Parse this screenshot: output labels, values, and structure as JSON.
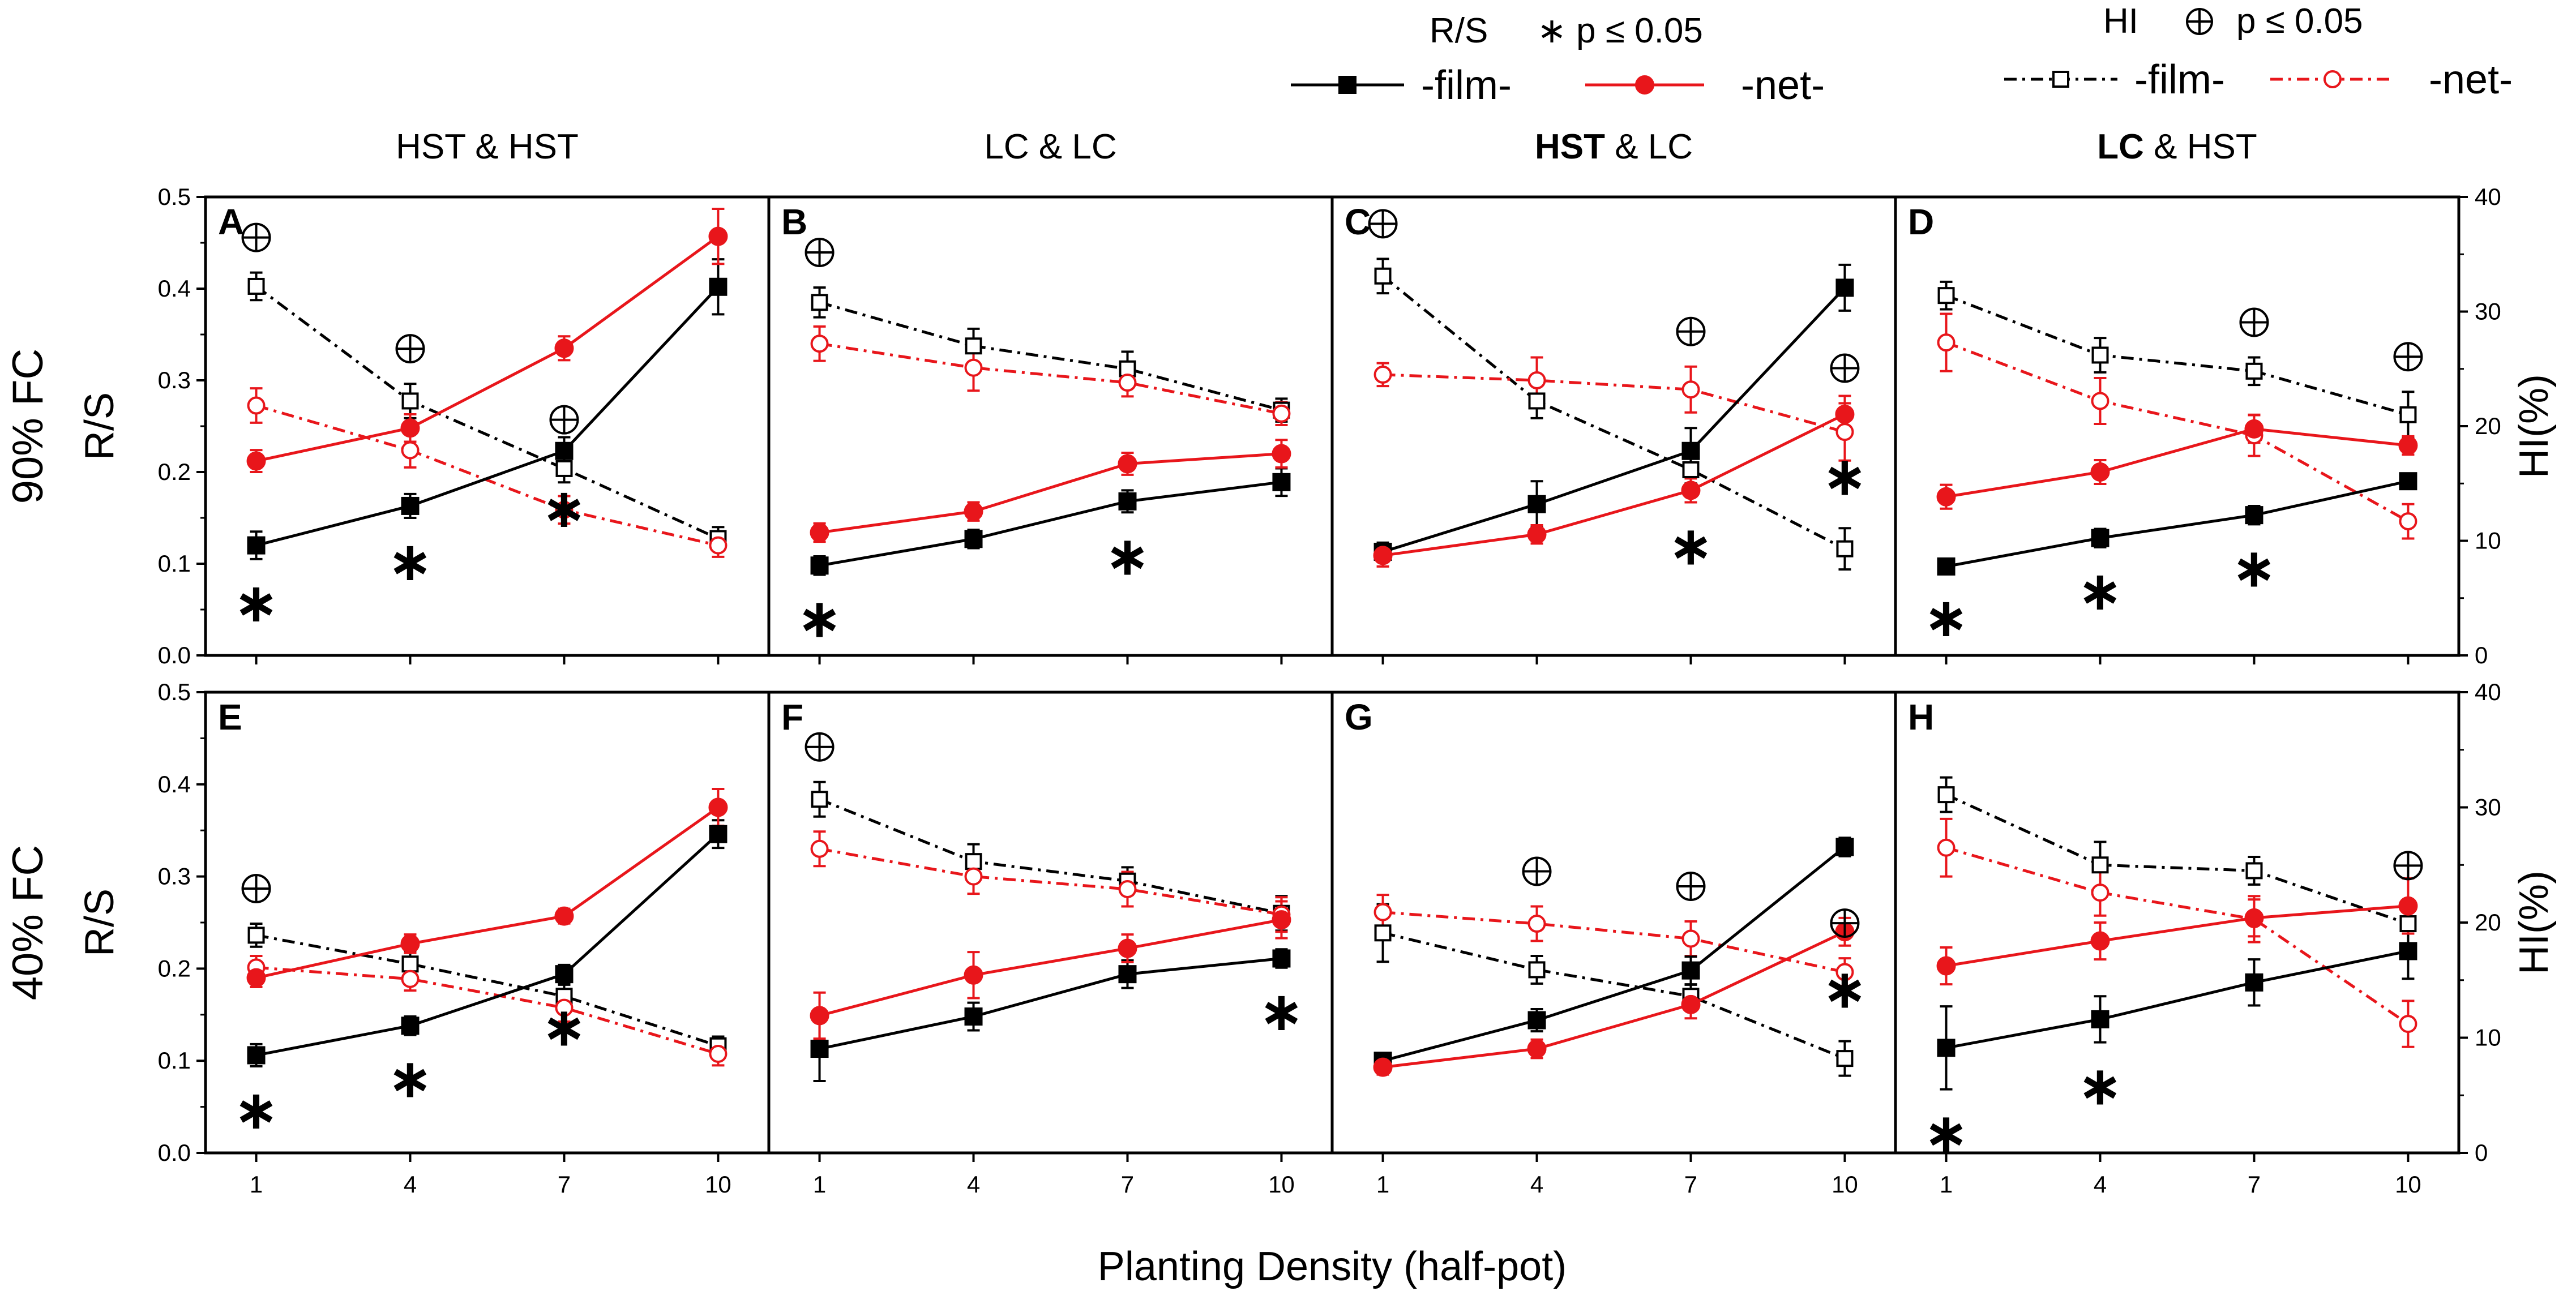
{
  "chart_data": {
    "type": "line",
    "xlabel": "Planting Density (half-pot)",
    "x": [
      1,
      4,
      7,
      10
    ],
    "x_ticks": [
      "1",
      "4",
      "7",
      "10"
    ],
    "left_axis": {
      "label": "R/S",
      "ylim": [
        0,
        0.5
      ],
      "ticks": [
        "0.0",
        "0.1",
        "0.2",
        "0.3",
        "0.4",
        "0.5"
      ]
    },
    "right_axis": {
      "label": "HI(%)",
      "ylim": [
        0,
        40
      ],
      "ticks": [
        "0",
        "10",
        "20",
        "30",
        "40"
      ]
    },
    "columns": [
      {
        "strong": "",
        "rest": "HST & HST"
      },
      {
        "strong": "",
        "rest": "LC & LC"
      },
      {
        "strong": "HST",
        "rest": " & LC"
      },
      {
        "strong": "LC",
        "rest": " & HST"
      }
    ],
    "rows": [
      "90% FC",
      "40% FC"
    ],
    "legend": {
      "rs_title": "R/S",
      "rs_sig": "∗ p ≤ 0.05",
      "hi_title": "HI",
      "hi_sig_symbol": "⊕",
      "hi_sig": "p ≤ 0.05",
      "film": "-film-",
      "net": "-net-"
    },
    "colors": {
      "film": "#000000",
      "net": "#e8161b"
    },
    "panels": [
      {
        "letter": "A",
        "rs_film": [
          0.12,
          0.163,
          0.223,
          0.402
        ],
        "rs_film_err": [
          0.015,
          0.013,
          0.015,
          0.03
        ],
        "rs_net": [
          0.212,
          0.248,
          0.335,
          0.457
        ],
        "rs_net_err": [
          0.012,
          0.015,
          0.013,
          0.03
        ],
        "hi_film": [
          32.2,
          22.2,
          16.3,
          10.2
        ],
        "hi_film_err": [
          1.2,
          1.5,
          1.2,
          1.0
        ],
        "hi_net": [
          21.8,
          17.9,
          12.7,
          9.6
        ],
        "hi_net_err": [
          1.5,
          1.5,
          1.2,
          1.0
        ],
        "rs_sig_x": [
          1,
          4,
          7
        ],
        "hi_sig_x": [
          1,
          4,
          7
        ]
      },
      {
        "letter": "B",
        "rs_film": [
          0.098,
          0.127,
          0.168,
          0.189
        ],
        "rs_film_err": [
          0.01,
          0.01,
          0.012,
          0.015
        ],
        "rs_net": [
          0.134,
          0.157,
          0.209,
          0.22
        ],
        "rs_net_err": [
          0.01,
          0.01,
          0.012,
          0.015
        ],
        "hi_film": [
          30.8,
          27.0,
          25.0,
          21.4
        ],
        "hi_film_err": [
          1.3,
          1.5,
          1.5,
          1.0
        ],
        "hi_net": [
          27.2,
          25.1,
          23.8,
          21.1
        ],
        "hi_net_err": [
          1.5,
          2.0,
          1.2,
          1.0
        ],
        "rs_sig_x": [
          1,
          7
        ],
        "hi_sig_x": [
          1
        ]
      },
      {
        "letter": "C",
        "rs_film": [
          0.113,
          0.165,
          0.223,
          0.401
        ],
        "rs_film_err": [
          0.01,
          0.025,
          0.025,
          0.025
        ],
        "rs_net": [
          0.109,
          0.132,
          0.18,
          0.263
        ],
        "rs_net_err": [
          0.012,
          0.01,
          0.013,
          0.02
        ],
        "hi_film": [
          33.1,
          22.2,
          16.2,
          9.3
        ],
        "hi_film_err": [
          1.5,
          1.5,
          1.2,
          1.8
        ],
        "hi_net": [
          24.5,
          24.0,
          23.2,
          19.5
        ],
        "hi_net_err": [
          1.0,
          2.0,
          2.0,
          2.5
        ],
        "rs_sig_x": [
          7,
          10
        ],
        "hi_sig_x": [
          1,
          7,
          10
        ]
      },
      {
        "letter": "D",
        "rs_film": [
          0.097,
          0.128,
          0.153,
          0.19
        ],
        "rs_film_err": [
          0.008,
          0.01,
          0.01,
          0.008
        ],
        "rs_net": [
          0.173,
          0.2,
          0.247,
          0.229
        ],
        "rs_net_err": [
          0.013,
          0.013,
          0.015,
          0.01
        ],
        "hi_film": [
          31.4,
          26.2,
          24.8,
          21.0
        ],
        "hi_film_err": [
          1.2,
          1.5,
          1.2,
          2.0
        ],
        "hi_net": [
          27.3,
          22.2,
          19.2,
          11.7
        ],
        "hi_net_err": [
          2.5,
          2.0,
          1.8,
          1.5
        ],
        "rs_sig_x": [
          1,
          4,
          7
        ],
        "hi_sig_x": [
          7,
          10
        ]
      },
      {
        "letter": "E",
        "rs_film": [
          0.106,
          0.138,
          0.194,
          0.346
        ],
        "rs_film_err": [
          0.012,
          0.01,
          0.01,
          0.015
        ],
        "rs_net": [
          0.19,
          0.227,
          0.257,
          0.375
        ],
        "rs_net_err": [
          0.01,
          0.01,
          0.008,
          0.02
        ],
        "hi_film": [
          18.9,
          16.4,
          13.6,
          9.3
        ],
        "hi_film_err": [
          1.0,
          1.0,
          1.0,
          0.8
        ],
        "hi_net": [
          16.1,
          15.1,
          12.6,
          8.6
        ],
        "hi_net_err": [
          1.0,
          1.0,
          1.2,
          1.0
        ],
        "rs_sig_x": [
          1,
          4,
          7
        ],
        "hi_sig_x": [
          1
        ]
      },
      {
        "letter": "F",
        "rs_film": [
          0.113,
          0.148,
          0.194,
          0.211
        ],
        "rs_film_err": [
          0.035,
          0.015,
          0.015,
          0.01
        ],
        "rs_net": [
          0.149,
          0.193,
          0.222,
          0.253
        ],
        "rs_net_err": [
          0.025,
          0.025,
          0.015,
          0.02
        ],
        "hi_film": [
          30.7,
          25.3,
          23.6,
          20.8
        ],
        "hi_film_err": [
          1.5,
          1.5,
          1.2,
          1.5
        ],
        "hi_net": [
          26.4,
          24.0,
          22.9,
          20.7
        ],
        "hi_net_err": [
          1.5,
          1.5,
          1.5,
          1.5
        ],
        "rs_sig_x": [
          10
        ],
        "hi_sig_x": [
          1
        ]
      },
      {
        "letter": "G",
        "rs_film": [
          0.1,
          0.144,
          0.198,
          0.332
        ],
        "rs_film_err": [
          0.008,
          0.012,
          0.015,
          0.01
        ],
        "rs_net": [
          0.093,
          0.113,
          0.161,
          0.24
        ],
        "rs_net_err": [
          0.008,
          0.01,
          0.015,
          0.015
        ],
        "hi_film": [
          19.1,
          15.9,
          13.6,
          8.2
        ],
        "hi_film_err": [
          2.5,
          1.2,
          1.0,
          1.5
        ],
        "hi_net": [
          20.9,
          19.9,
          18.6,
          15.7
        ],
        "hi_net_err": [
          1.5,
          1.5,
          1.5,
          1.2
        ],
        "rs_sig_x": [
          10
        ],
        "hi_sig_x": [
          4,
          7,
          10
        ]
      },
      {
        "letter": "H",
        "rs_film": [
          0.114,
          0.145,
          0.185,
          0.219
        ],
        "rs_film_err": [
          0.045,
          0.025,
          0.025,
          0.03
        ],
        "rs_net": [
          0.203,
          0.23,
          0.255,
          0.268
        ],
        "rs_net_err": [
          0.02,
          0.02,
          0.02,
          0.03
        ],
        "hi_film": [
          31.1,
          25.0,
          24.5,
          19.9
        ],
        "hi_film_err": [
          1.5,
          2.0,
          1.2,
          2.0
        ],
        "hi_net": [
          26.5,
          22.6,
          20.3,
          11.2
        ],
        "hi_net_err": [
          2.5,
          2.0,
          2.0,
          2.0
        ],
        "rs_sig_x": [
          1,
          4
        ],
        "hi_sig_x": [
          10
        ]
      }
    ]
  }
}
